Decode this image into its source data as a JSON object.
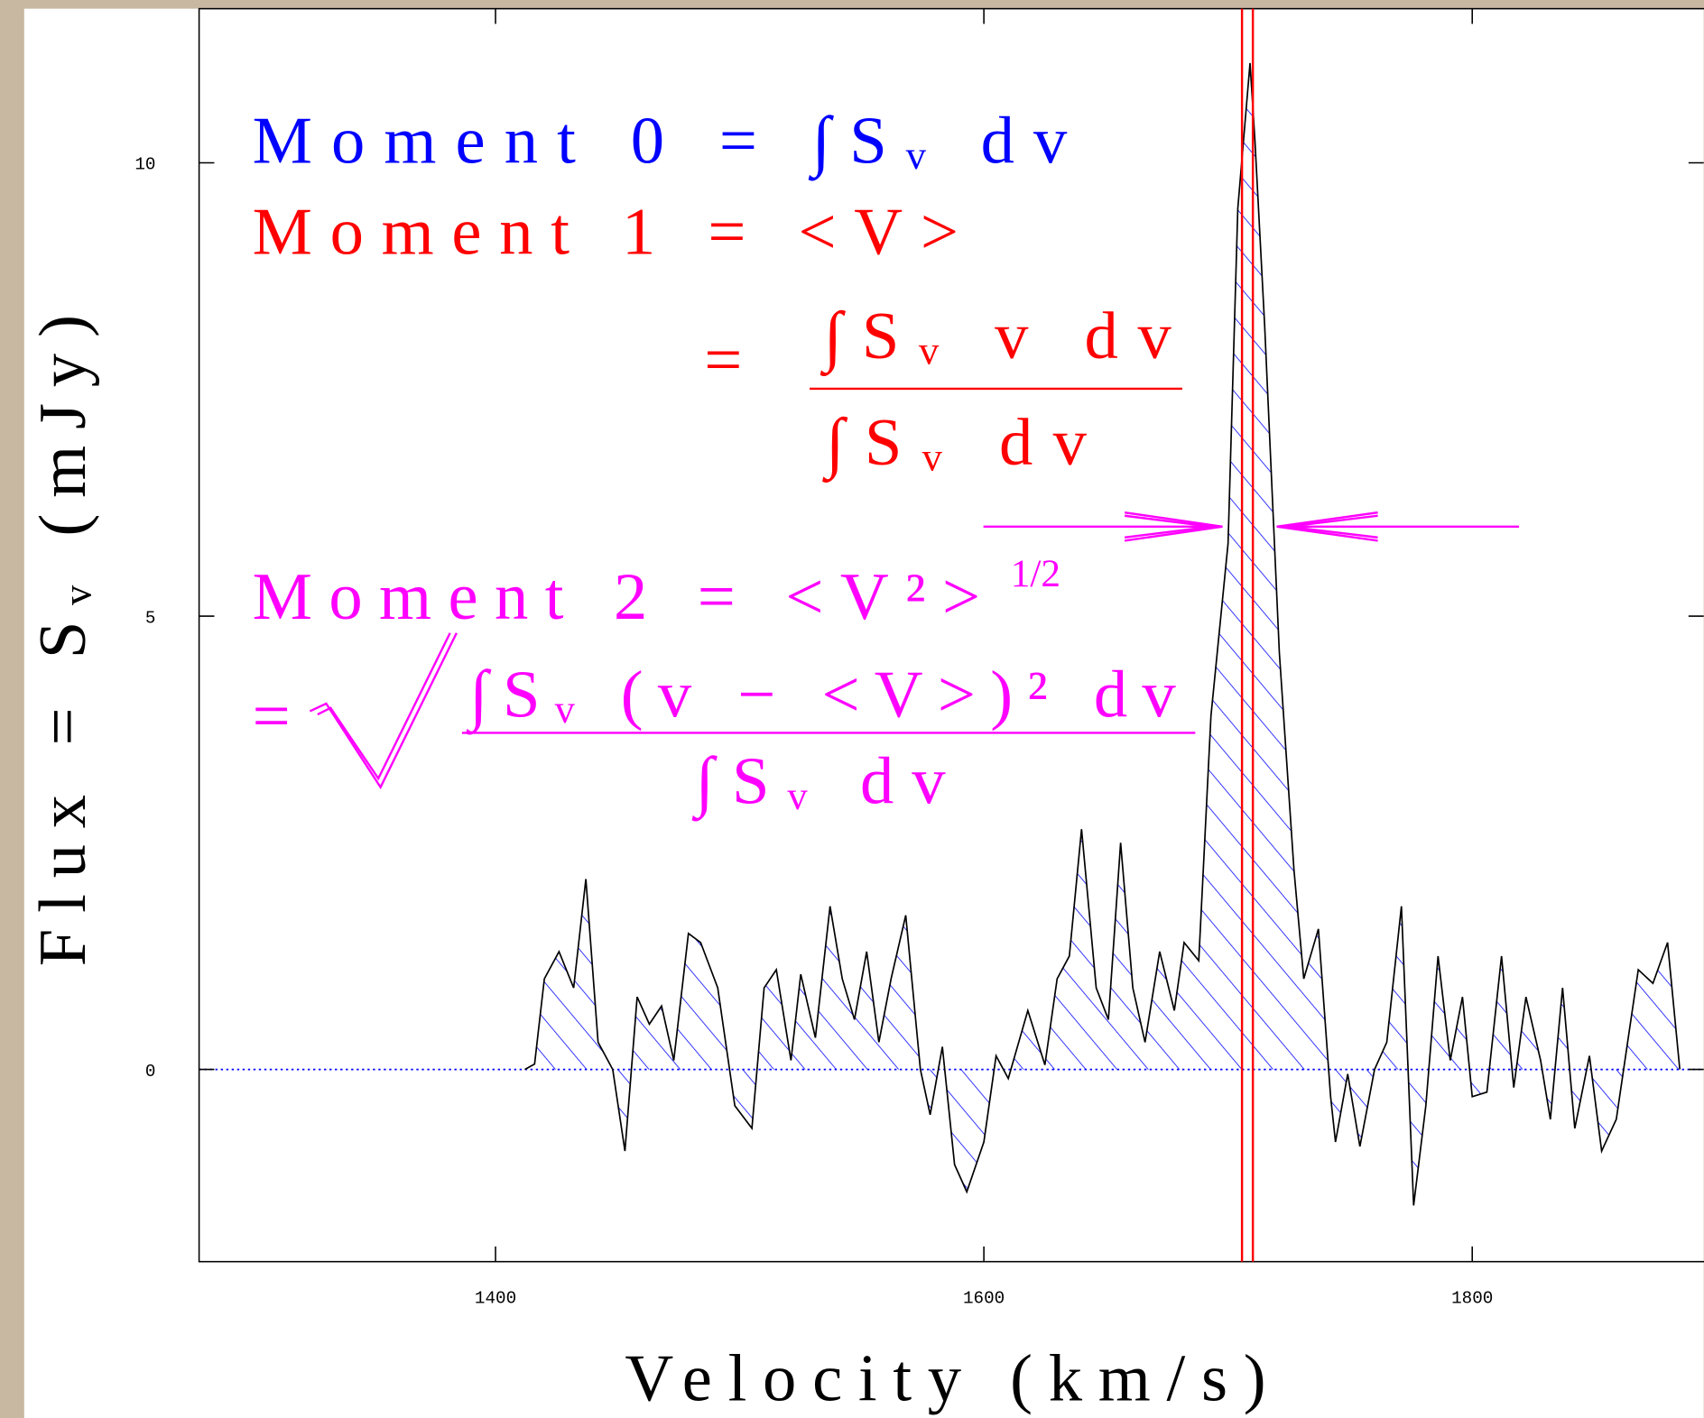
{
  "chart_data": {
    "type": "line",
    "x": [
      1412,
      1416,
      1420,
      1426,
      1432,
      1437,
      1442,
      1448,
      1453,
      1458,
      1463,
      1468,
      1473,
      1479,
      1484,
      1491,
      1498,
      1505,
      1510,
      1515,
      1521,
      1525,
      1531,
      1537,
      1542,
      1547,
      1552,
      1557,
      1562,
      1568,
      1574,
      1578,
      1583,
      1588,
      1593,
      1600,
      1605,
      1610,
      1618,
      1625,
      1630,
      1635,
      1640,
      1646,
      1651,
      1656,
      1661,
      1666,
      1672,
      1678,
      1682,
      1688,
      1693,
      1700,
      1704,
      1709,
      1711,
      1715,
      1721,
      1727,
      1731,
      1737,
      1742,
      1744,
      1749,
      1754,
      1760,
      1765,
      1771,
      1776,
      1781,
      1786,
      1791,
      1796,
      1800,
      1806,
      1812,
      1817,
      1822,
      1828,
      1832,
      1837,
      1842,
      1848,
      1853,
      1859,
      1868,
      1874,
      1880,
      1885
    ],
    "values": [
      0,
      0.06,
      1.0,
      1.3,
      0.9,
      2.1,
      0.3,
      0,
      -0.9,
      0.8,
      0.5,
      0.7,
      0.1,
      1.5,
      1.4,
      0.9,
      -0.4,
      -0.65,
      0.9,
      1.1,
      0.1,
      1.05,
      0.35,
      1.8,
      1.0,
      0.55,
      1.3,
      0.3,
      1.0,
      1.7,
      0,
      -0.5,
      0.25,
      -1.05,
      -1.35,
      -0.8,
      0.15,
      -0.1,
      0.65,
      0.05,
      1.0,
      1.25,
      2.65,
      0.9,
      0.55,
      2.5,
      0.9,
      0.3,
      1.3,
      0.65,
      1.4,
      1.2,
      3.9,
      5.8,
      9.5,
      11.1,
      10.25,
      8.2,
      4.6,
      2.2,
      1.0,
      1.55,
      -0.3,
      -0.8,
      -0.05,
      -0.85,
      0,
      0.3,
      1.8,
      -1.5,
      -0.4,
      1.25,
      0.1,
      0.8,
      -0.3,
      -0.25,
      1.25,
      -0.2,
      0.8,
      0.1,
      -0.55,
      0.9,
      -0.65,
      0.15,
      -0.9,
      -0.55,
      1.1,
      0.95,
      1.4,
      0
    ],
    "color": "#000000",
    "fill_color": "#0000ff",
    "xlim": [
      1278.6,
      1894.8
    ],
    "ylim": [
      -2.12,
      11.7
    ],
    "xticks": [
      1400,
      1600,
      1800
    ],
    "yticks": [
      0,
      5,
      10
    ],
    "x_label": "Velocity (km/s)",
    "y_label": "Flux = Sᵥ (mJy)",
    "annotations": [
      {
        "text": "Moment 0 = ∫Sᵥ dv",
        "color": "#0000ff"
      },
      {
        "text": "Moment 1 = <V>",
        "color": "#ff0000"
      },
      {
        "text": "=",
        "color": "#ff0000"
      },
      {
        "text": "∫Sᵥ v dv",
        "color": "#ff0000"
      },
      {
        "text": "∫Sᵥ dv",
        "color": "#ff0000"
      },
      {
        "text": "Moment 2 = <V²>",
        "color": "#ff00ff"
      },
      {
        "text": "1/2",
        "color": "#ff00ff"
      },
      {
        "text": "=",
        "color": "#ff00ff"
      },
      {
        "text": "∫Sᵥ (v − <V>)² dv",
        "color": "#ff00ff"
      },
      {
        "text": "∫Sᵥ dv",
        "color": "#ff00ff"
      }
    ]
  }
}
